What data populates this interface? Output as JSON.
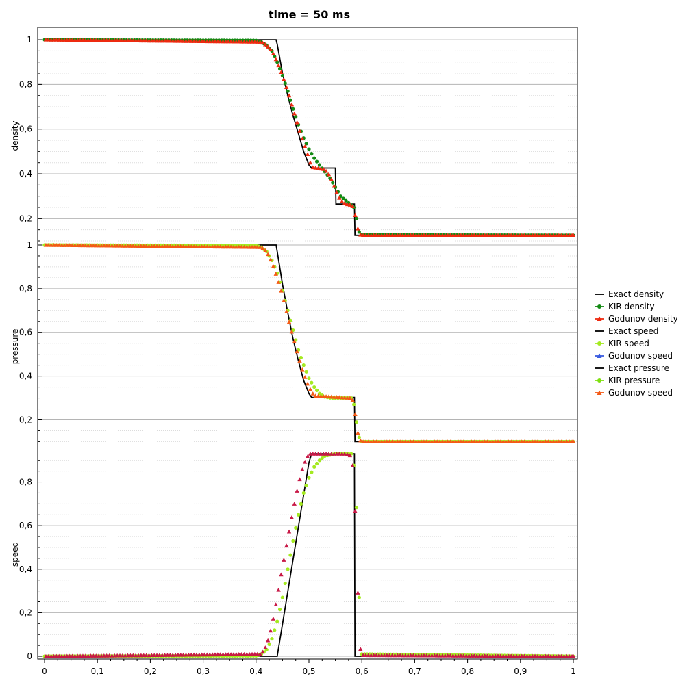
{
  "chart_data": {
    "type": "line",
    "title": "time = 50 ms",
    "x_ticks": [
      "0",
      "0,1",
      "0,2",
      "0,3",
      "0,4",
      "0,5",
      "0,6",
      "0,7",
      "0,8",
      "0,9",
      "1"
    ],
    "xlim": [
      0,
      1
    ],
    "panels": [
      {
        "ylabel": "density",
        "ylim": [
          0.1,
          1.04
        ],
        "y_ticks": [
          {
            "value": 0.2,
            "label": "0,2"
          },
          {
            "value": 0.4,
            "label": "0,4"
          },
          {
            "value": 0.6,
            "label": "0,6"
          },
          {
            "value": 0.8,
            "label": "0,8"
          },
          {
            "value": 1.0,
            "label": "1"
          }
        ],
        "series": [
          {
            "name": "Exact density",
            "style": "line",
            "color": "#000000",
            "x": [
              0,
              0.438,
              0.44,
              0.45,
              0.46,
              0.47,
              0.48,
              0.49,
              0.5,
              0.505,
              0.54,
              0.55,
              0.551,
              0.584,
              0.585,
              0.586,
              0.587,
              1
            ],
            "y": [
              1.0,
              1.0,
              0.98,
              0.85,
              0.75,
              0.66,
              0.58,
              0.5,
              0.44,
              0.426,
              0.426,
              0.426,
              0.265,
              0.265,
              0.265,
              0.265,
              0.125,
              0.125
            ]
          },
          {
            "name": "KIR density",
            "style": "markers",
            "marker": "circle",
            "color": "#138a13",
            "x": [
              0,
              0.4,
              0.41,
              0.42,
              0.43,
              0.44,
              0.45,
              0.46,
              0.47,
              0.48,
              0.49,
              0.5,
              0.51,
              0.52,
              0.53,
              0.54,
              0.55,
              0.56,
              0.57,
              0.58,
              0.585,
              0.59,
              0.595,
              0.6,
              1
            ],
            "y": [
              1.0,
              0.997,
              0.99,
              0.975,
              0.95,
              0.9,
              0.84,
              0.77,
              0.69,
              0.62,
              0.56,
              0.51,
              0.47,
              0.44,
              0.41,
              0.38,
              0.34,
              0.3,
              0.28,
              0.26,
              0.25,
              0.2,
              0.14,
              0.127,
              0.125
            ]
          },
          {
            "name": "Godunov density",
            "style": "markers",
            "marker": "triangle",
            "color": "#ee2a10",
            "x": [
              0,
              0.41,
              0.42,
              0.43,
              0.44,
              0.45,
              0.46,
              0.47,
              0.48,
              0.49,
              0.5,
              0.505,
              0.53,
              0.54,
              0.55,
              0.56,
              0.57,
              0.58,
              0.585,
              0.59,
              0.595,
              0.6,
              1
            ],
            "y": [
              1.0,
              0.99,
              0.975,
              0.95,
              0.9,
              0.84,
              0.77,
              0.69,
              0.61,
              0.54,
              0.47,
              0.43,
              0.42,
              0.39,
              0.33,
              0.28,
              0.265,
              0.26,
              0.25,
              0.18,
              0.13,
              0.125,
              0.125
            ]
          }
        ]
      },
      {
        "ylabel": "pressure",
        "ylim": [
          0.07,
          1.0
        ],
        "y_ticks": [
          {
            "value": 0.2,
            "label": "0,2"
          },
          {
            "value": 0.4,
            "label": "0,4"
          },
          {
            "value": 0.6,
            "label": "0,6"
          },
          {
            "value": 0.8,
            "label": "0,8"
          },
          {
            "value": 1.0,
            "label": "1"
          }
        ],
        "series": [
          {
            "name": "Exact pressure",
            "style": "line",
            "color": "#000000",
            "x": [
              0,
              0.438,
              0.44,
              0.45,
              0.46,
              0.47,
              0.48,
              0.49,
              0.5,
              0.505,
              0.584,
              0.585,
              0.586,
              0.587,
              1
            ],
            "y": [
              1.0,
              1.0,
              0.97,
              0.82,
              0.69,
              0.57,
              0.47,
              0.38,
              0.32,
              0.303,
              0.303,
              0.303,
              0.303,
              0.1,
              0.1
            ]
          },
          {
            "name": "KIR pressure",
            "style": "markers",
            "marker": "circle",
            "color": "#a4ea20",
            "x": [
              0,
              0.4,
              0.41,
              0.42,
              0.43,
              0.44,
              0.45,
              0.46,
              0.47,
              0.48,
              0.49,
              0.5,
              0.51,
              0.52,
              0.53,
              0.54,
              0.55,
              0.58,
              0.585,
              0.59,
              0.595,
              0.6,
              1
            ],
            "y": [
              1.0,
              0.998,
              0.99,
              0.97,
              0.93,
              0.87,
              0.79,
              0.7,
              0.61,
              0.52,
              0.45,
              0.39,
              0.35,
              0.32,
              0.305,
              0.301,
              0.3,
              0.3,
              0.27,
              0.19,
              0.12,
              0.1,
              0.1
            ]
          },
          {
            "name": "Godunov speed",
            "style": "markers",
            "marker": "triangle",
            "color": "#f45a16",
            "x": [
              0,
              0.41,
              0.42,
              0.43,
              0.44,
              0.45,
              0.46,
              0.47,
              0.48,
              0.49,
              0.5,
              0.51,
              0.58,
              0.585,
              0.59,
              0.595,
              0.6,
              1
            ],
            "y": [
              1.0,
              0.99,
              0.97,
              0.92,
              0.85,
              0.77,
              0.67,
              0.58,
              0.49,
              0.41,
              0.35,
              0.31,
              0.3,
              0.28,
              0.17,
              0.11,
              0.1,
              0.1
            ]
          }
        ]
      },
      {
        "ylabel": "speed",
        "ylim": [
          -0.003,
          0.94
        ],
        "y_ticks": [
          {
            "value": 0,
            "label": "0"
          },
          {
            "value": 0.2,
            "label": "0,2"
          },
          {
            "value": 0.4,
            "label": "0,4"
          },
          {
            "value": 0.6,
            "label": "0,6"
          },
          {
            "value": 0.8,
            "label": "0,8"
          }
        ],
        "series": [
          {
            "name": "Exact speed",
            "style": "line",
            "color": "#000000",
            "x": [
              0,
              0.44,
              0.5,
              0.505,
              0.585,
              0.586,
              0.587,
              1
            ],
            "y": [
              0,
              0,
              0.89,
              0.93,
              0.93,
              0.93,
              0,
              0
            ]
          },
          {
            "name": "KIR speed",
            "style": "markers",
            "marker": "circle",
            "color": "#a4ea20",
            "x": [
              0,
              0.4,
              0.41,
              0.42,
              0.43,
              0.44,
              0.45,
              0.46,
              0.47,
              0.48,
              0.49,
              0.5,
              0.51,
              0.52,
              0.53,
              0.54,
              0.55,
              0.56,
              0.57,
              0.58,
              0.583,
              0.586,
              0.589,
              0.592,
              0.595,
              0.6,
              1
            ],
            "y": [
              0,
              0.002,
              0.01,
              0.03,
              0.08,
              0.16,
              0.27,
              0.4,
              0.53,
              0.65,
              0.75,
              0.82,
              0.87,
              0.9,
              0.92,
              0.925,
              0.93,
              0.93,
              0.93,
              0.93,
              0.91,
              0.86,
              0.75,
              0.55,
              0.27,
              0.01,
              0
            ]
          },
          {
            "name": "Godunov speed",
            "style": "markers",
            "marker": "triangle",
            "color": "#c81846",
            "x": [
              0,
              0.41,
              0.42,
              0.43,
              0.44,
              0.45,
              0.46,
              0.47,
              0.48,
              0.49,
              0.5,
              0.51,
              0.57,
              0.58,
              0.584,
              0.587,
              0.59,
              0.593,
              0.596,
              0.6,
              1
            ],
            "y": [
              0,
              0.01,
              0.05,
              0.14,
              0.27,
              0.41,
              0.54,
              0.67,
              0.79,
              0.88,
              0.93,
              0.93,
              0.93,
              0.92,
              0.85,
              0.7,
              0.5,
              0.25,
              0.05,
              0.005,
              0
            ]
          }
        ]
      }
    ],
    "legend": {
      "placement": "right",
      "entries": [
        {
          "label": "Exact density",
          "color": "#000000",
          "marker": "none"
        },
        {
          "label": "KIR density",
          "color": "#138a13",
          "marker": "circle"
        },
        {
          "label": "Godunov density",
          "color": "#ee2a10",
          "marker": "triangle"
        },
        {
          "label": "Exact speed",
          "color": "#000000",
          "marker": "none"
        },
        {
          "label": "KIR speed",
          "color": "#a4ea20",
          "marker": "circle"
        },
        {
          "label": "Godunov speed",
          "color": "#3a5ce0",
          "marker": "triangle"
        },
        {
          "label": "Exact pressure",
          "color": "#000000",
          "marker": "none"
        },
        {
          "label": "KIR pressure",
          "color": "#7fe010",
          "marker": "circle"
        },
        {
          "label": "Godunov speed",
          "color": "#f45a16",
          "marker": "triangle"
        }
      ]
    },
    "grid": true
  }
}
